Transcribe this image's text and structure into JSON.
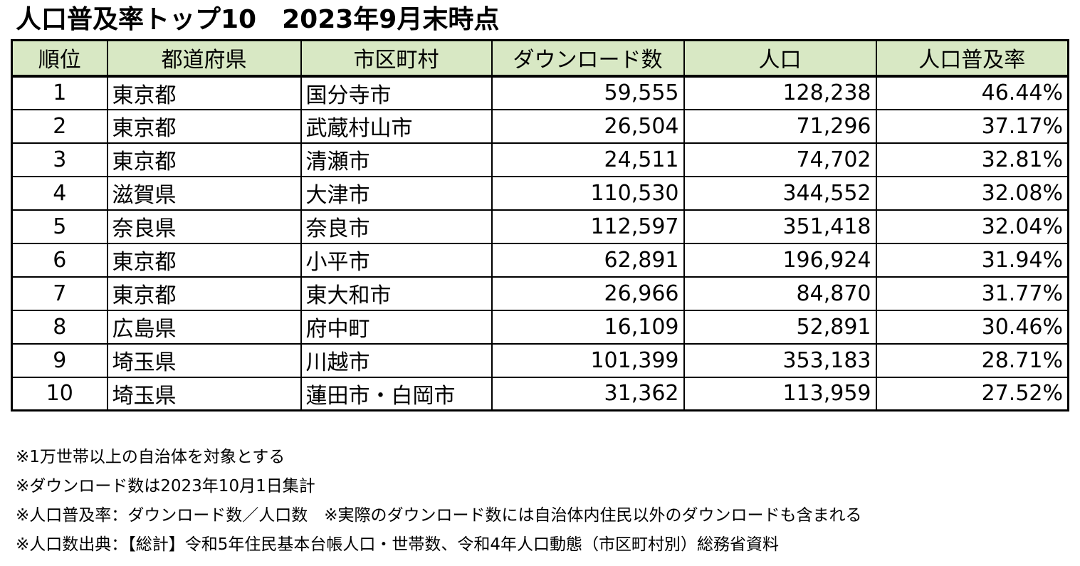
{
  "title": "人口普及率トップ10　2023年9月末時点",
  "table": {
    "headers": [
      "順位",
      "都道府県",
      "市区町村",
      "ダウンロード数",
      "人口",
      "人口普及率"
    ],
    "rows": [
      [
        "1",
        "東京都",
        "国分寺市",
        "59,555",
        "128,238",
        "46.44%"
      ],
      [
        "2",
        "東京都",
        "武蔵村山市",
        "26,504",
        "71,296",
        "37.17%"
      ],
      [
        "3",
        "東京都",
        "清瀬市",
        "24,511",
        "74,702",
        "32.81%"
      ],
      [
        "4",
        "滋賀県",
        "大津市",
        "110,530",
        "344,552",
        "32.08%"
      ],
      [
        "5",
        "奈良県",
        "奈良市",
        "112,597",
        "351,418",
        "32.04%"
      ],
      [
        "6",
        "東京都",
        "小平市",
        "62,891",
        "196,924",
        "31.94%"
      ],
      [
        "7",
        "東京都",
        "東大和市",
        "26,966",
        "84,870",
        "31.77%"
      ],
      [
        "8",
        "広島県",
        "府中町",
        "16,109",
        "52,891",
        "30.46%"
      ],
      [
        "9",
        "埼玉県",
        "川越市",
        "101,399",
        "353,183",
        "28.71%"
      ],
      [
        "10",
        "埼玉県",
        "蓮田市・白岡市",
        "31,362",
        "113,959",
        "27.52%"
      ]
    ]
  },
  "notes": [
    "※1万世帯以上の自治体を対象とする",
    "※ダウンロード数は2023年10月1日集計",
    "※人口普及率：ダウンロード数／人口数　※実際のダウンロード数には自治体内住民以外のダウンロードも含まれる",
    "※人口数出典：【総計】令和5年住民基本台帳人口・世帯数、令和4年人口動態（市区町村別）総務省資料"
  ],
  "colors": {
    "header_bg": "#d8e8c4",
    "border": "#000000",
    "text": "#000000"
  }
}
